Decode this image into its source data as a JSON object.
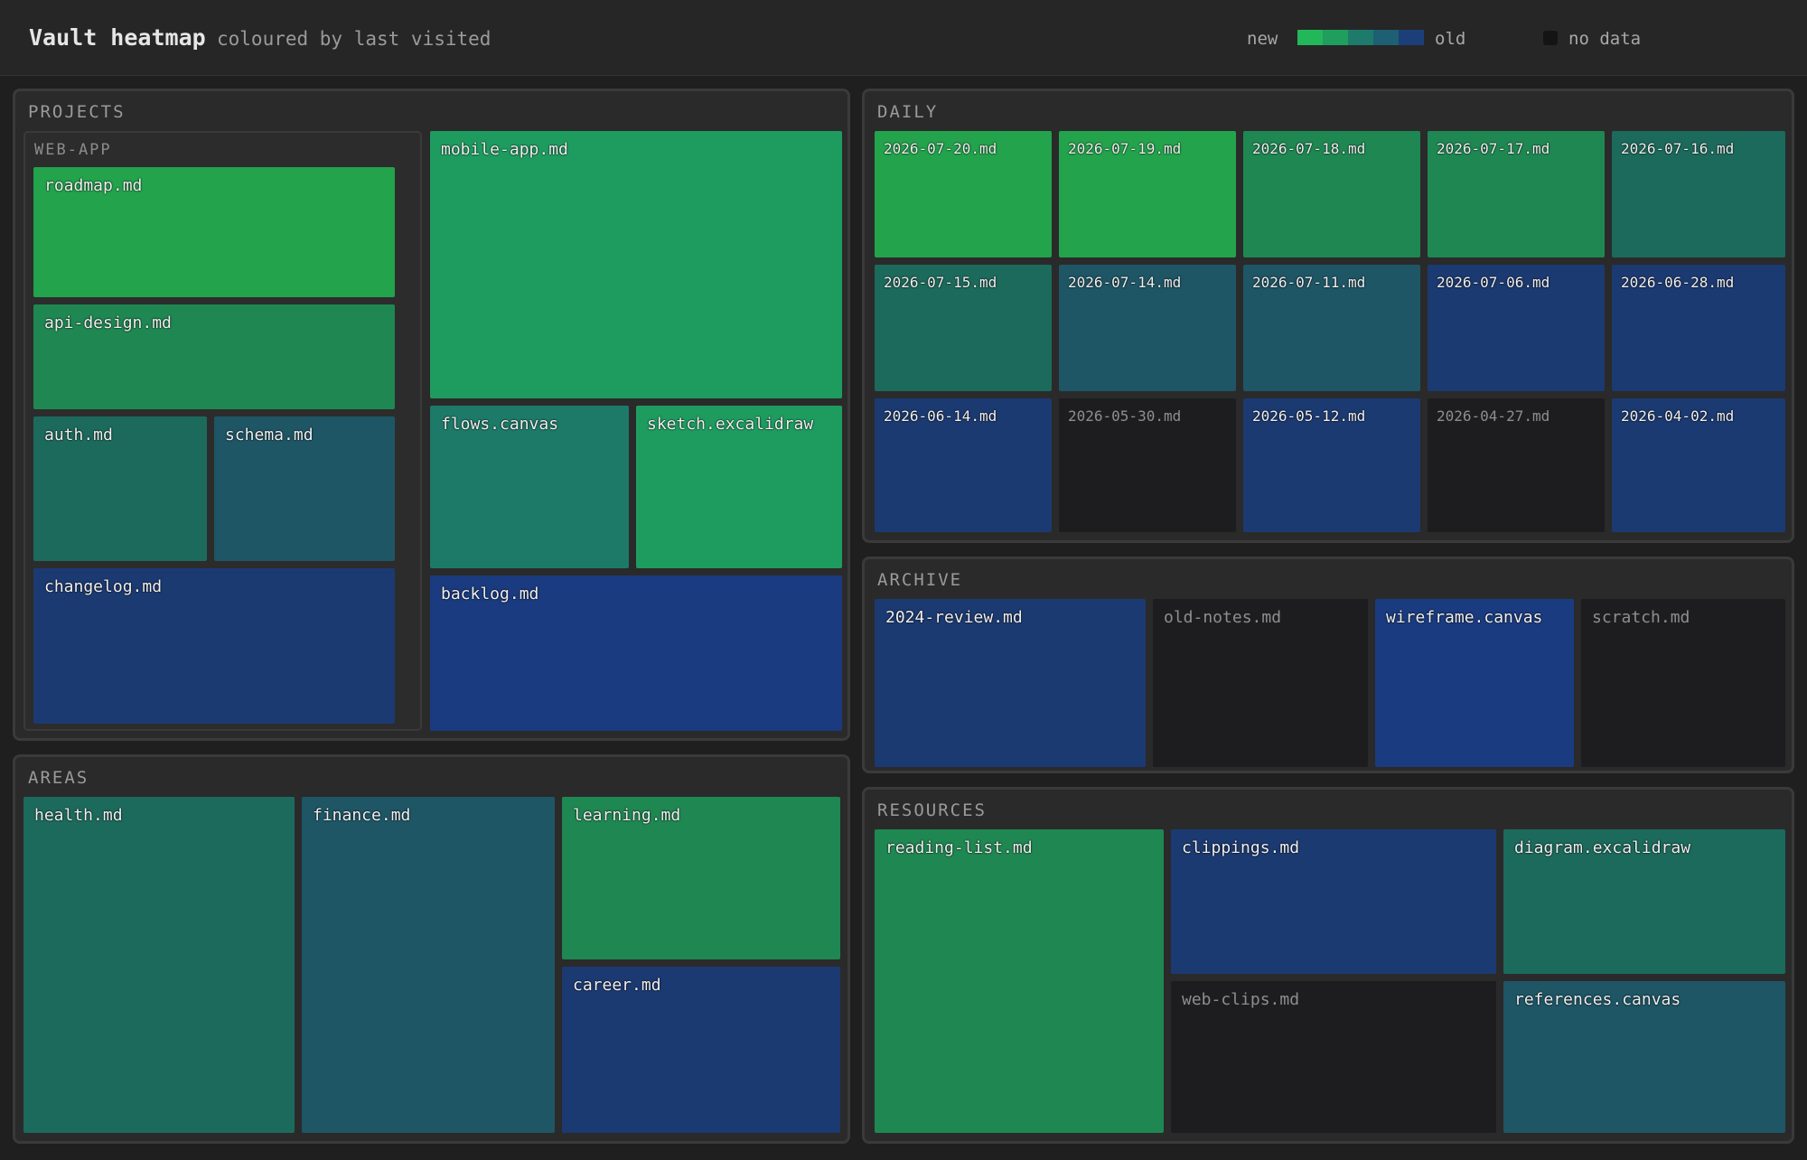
{
  "header": {
    "title": "Vault heatmap",
    "subtitle": "coloured by last visited"
  },
  "legend": {
    "new_label": "new",
    "old_label": "old",
    "no_data_label": "no data",
    "scale_colors": [
      "#22b85a",
      "#1f9e5e",
      "#1e7a6a",
      "#1d5f73",
      "#1c3f7a"
    ],
    "no_data_color": "#1d1d20"
  },
  "colors": {
    "c1": "#22a34c",
    "c2": "#1e9c60",
    "c3": "#1f8752",
    "c4": "#1c6a5c",
    "c5": "#1d7a68",
    "c6": "#1e5666",
    "c7": "#1c3a72",
    "c8": "#1a3b80",
    "nodata": "#1d1d20"
  },
  "sections": {
    "projects": {
      "label": "PROJECTS",
      "web_app": {
        "label": "WEB-APP",
        "roadmap": "roadmap.md",
        "api_design": "api-design.md",
        "auth": "auth.md",
        "schema": "schema.md",
        "changelog": "changelog.md"
      },
      "mobile_app": "mobile-app.md",
      "flows": "flows.canvas",
      "sketch": "sketch.excalidraw",
      "backlog": "backlog.md"
    },
    "areas": {
      "label": "AREAS",
      "health": "health.md",
      "finance": "finance.md",
      "learning": "learning.md",
      "career": "career.md"
    },
    "daily": {
      "label": "DAILY",
      "notes": [
        "2026-07-20.md",
        "2026-07-19.md",
        "2026-07-18.md",
        "2026-07-17.md",
        "2026-07-16.md",
        "2026-07-15.md",
        "2026-07-14.md",
        "2026-07-11.md",
        "2026-07-06.md",
        "2026-06-28.md",
        "2026-06-14.md",
        "2026-05-30.md",
        "2026-05-12.md",
        "2026-04-27.md",
        "2026-04-02.md"
      ]
    },
    "archive": {
      "label": "ARCHIVE",
      "review": "2024-review.md",
      "old_notes": "old-notes.md",
      "wireframe": "wireframe.canvas",
      "scratch": "scratch.md"
    },
    "resources": {
      "label": "RESOURCES",
      "reading_list": "reading-list.md",
      "clippings": "clippings.md",
      "diagram": "diagram.excalidraw",
      "web_clips": "web-clips.md",
      "references": "references.canvas"
    }
  }
}
